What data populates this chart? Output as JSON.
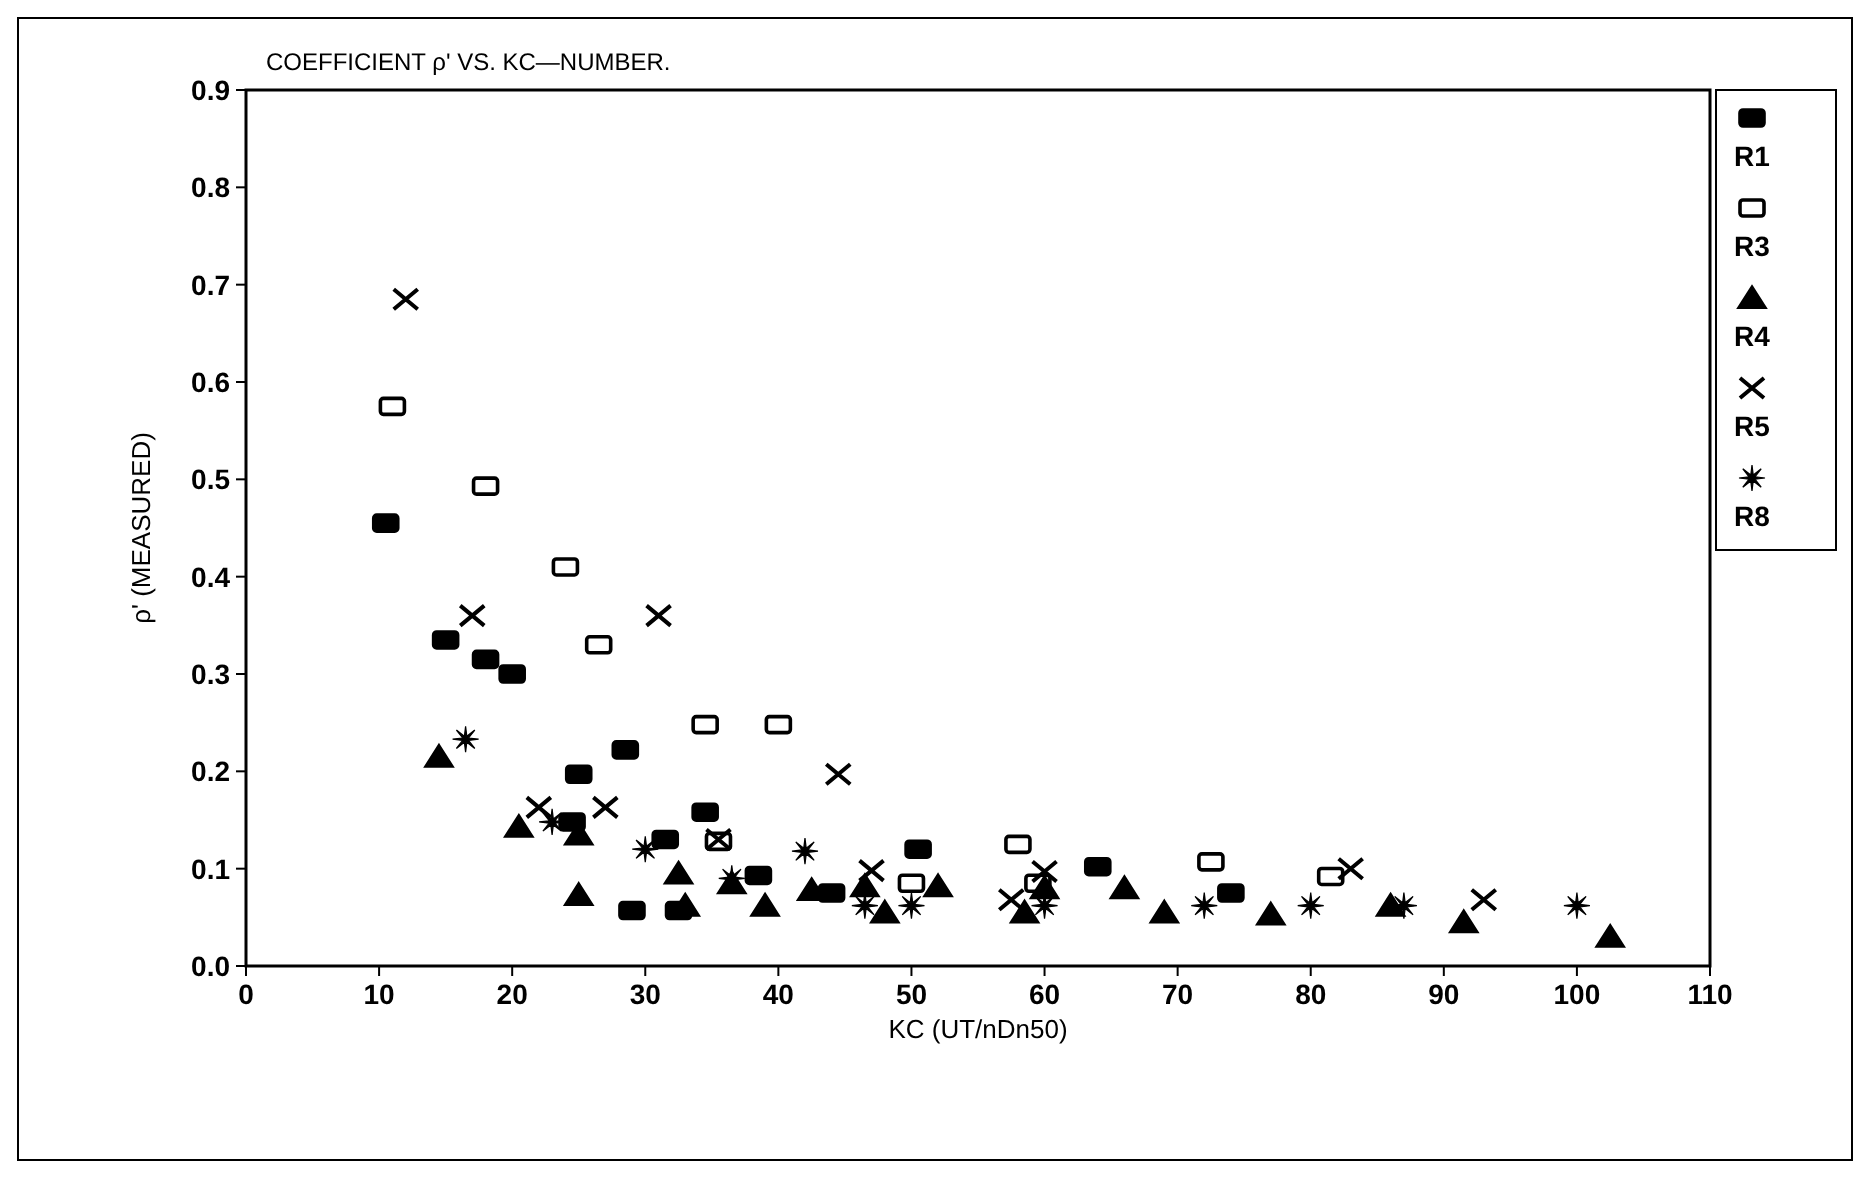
{
  "chart_data": {
    "type": "scatter",
    "title": "COEFFICIENT ρ' VS. KC—NUMBER.",
    "xlabel": "KC  (UT/nDn50)",
    "ylabel": "ρ'  (MEASURED)",
    "xlim": [
      0,
      110
    ],
    "xticks": [
      0,
      10,
      20,
      30,
      40,
      50,
      60,
      70,
      80,
      90,
      100,
      110
    ],
    "ylim": [
      0,
      0.9
    ],
    "yticks": [
      {
        "value": 0,
        "label": "0.0"
      },
      0.1,
      0.2,
      0.3,
      0.4,
      0.5,
      0.6,
      0.7,
      0.8,
      0.9
    ],
    "grid": false,
    "legend": "right",
    "series": [
      {
        "name": "R1",
        "color": "#000000",
        "marker": "square",
        "x": [
          10.5,
          15,
          18,
          20,
          25,
          24.5,
          28.5,
          29,
          31.5,
          32.5,
          34.5,
          38.5,
          44,
          50.5,
          64,
          74
        ],
        "values": [
          0.455,
          0.335,
          0.315,
          0.3,
          0.197,
          0.148,
          0.222,
          0.057,
          0.13,
          0.057,
          0.158,
          0.093,
          0.075,
          0.12,
          0.102,
          0.075
        ]
      },
      {
        "name": "R3",
        "color": "#ffffff",
        "marker": "square",
        "x": [
          11,
          18,
          24,
          26.5,
          34.5,
          40,
          35.5,
          50,
          58,
          59.5,
          72.5,
          81.5
        ],
        "values": [
          0.575,
          0.493,
          0.41,
          0.33,
          0.248,
          0.248,
          0.128,
          0.085,
          0.125,
          0.085,
          0.107,
          0.092
        ]
      },
      {
        "name": "R4",
        "color": "#000000",
        "marker": "triangle",
        "x": [
          14.5,
          20.5,
          25,
          25,
          32.5,
          33,
          36.5,
          39,
          42.5,
          46.5,
          48,
          52,
          58.5,
          60,
          66,
          69,
          77,
          86,
          91.5,
          102.5
        ],
        "values": [
          0.215,
          0.143,
          0.135,
          0.073,
          0.095,
          0.062,
          0.085,
          0.062,
          0.078,
          0.082,
          0.055,
          0.082,
          0.055,
          0.08,
          0.08,
          0.055,
          0.053,
          0.062,
          0.045,
          0.03
        ]
      },
      {
        "name": "R5",
        "color": "#000000",
        "marker": "cross",
        "x": [
          12,
          17,
          22,
          27,
          31,
          35.5,
          44.5,
          47,
          57.5,
          60,
          83,
          93
        ],
        "values": [
          0.685,
          0.36,
          0.163,
          0.163,
          0.36,
          0.13,
          0.197,
          0.098,
          0.068,
          0.097,
          0.1,
          0.068
        ]
      },
      {
        "name": "R8",
        "color": "#000000",
        "marker": "star",
        "x": [
          16.5,
          23,
          30,
          36.5,
          42,
          46.5,
          50,
          60,
          72,
          80,
          87,
          100
        ],
        "values": [
          0.233,
          0.148,
          0.12,
          0.09,
          0.118,
          0.062,
          0.062,
          0.062,
          0.062,
          0.062,
          0.062,
          0.062
        ]
      }
    ]
  }
}
